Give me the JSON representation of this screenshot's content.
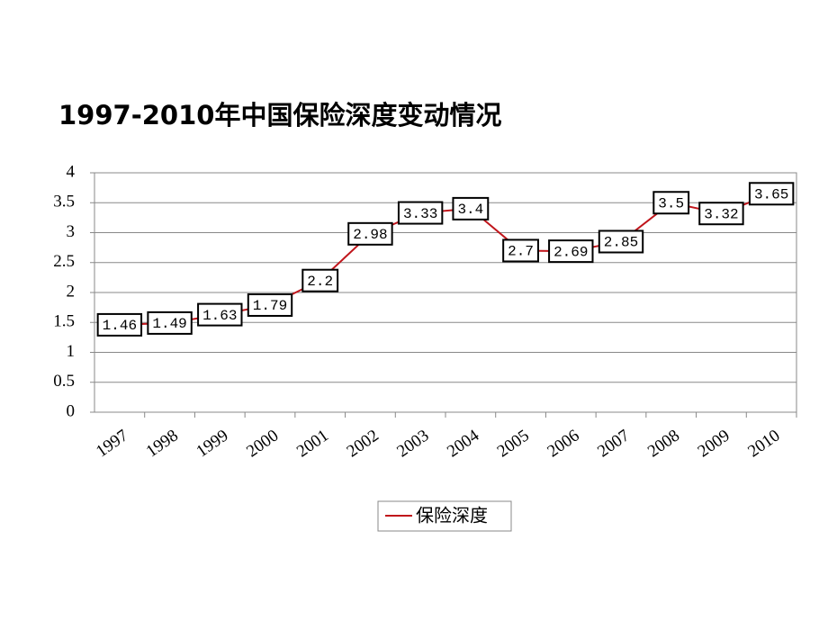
{
  "chart_data": {
    "type": "line",
    "title": "1997-2010年中国保险深度变动情况",
    "categories": [
      "1997",
      "1998",
      "1999",
      "2000",
      "2001",
      "2002",
      "2003",
      "2004",
      "2005",
      "2006",
      "2007",
      "2008",
      "2009",
      "2010"
    ],
    "series": [
      {
        "name": "保险深度",
        "color": "#c0151b",
        "values": [
          1.46,
          1.49,
          1.63,
          1.79,
          2.2,
          2.98,
          3.33,
          3.4,
          2.7,
          2.69,
          2.85,
          3.5,
          3.32,
          3.65
        ]
      }
    ],
    "ylim": [
      0,
      4
    ],
    "yticks": [
      0,
      0.5,
      1,
      1.5,
      2,
      2.5,
      3,
      3.5,
      4
    ],
    "grid": true
  }
}
